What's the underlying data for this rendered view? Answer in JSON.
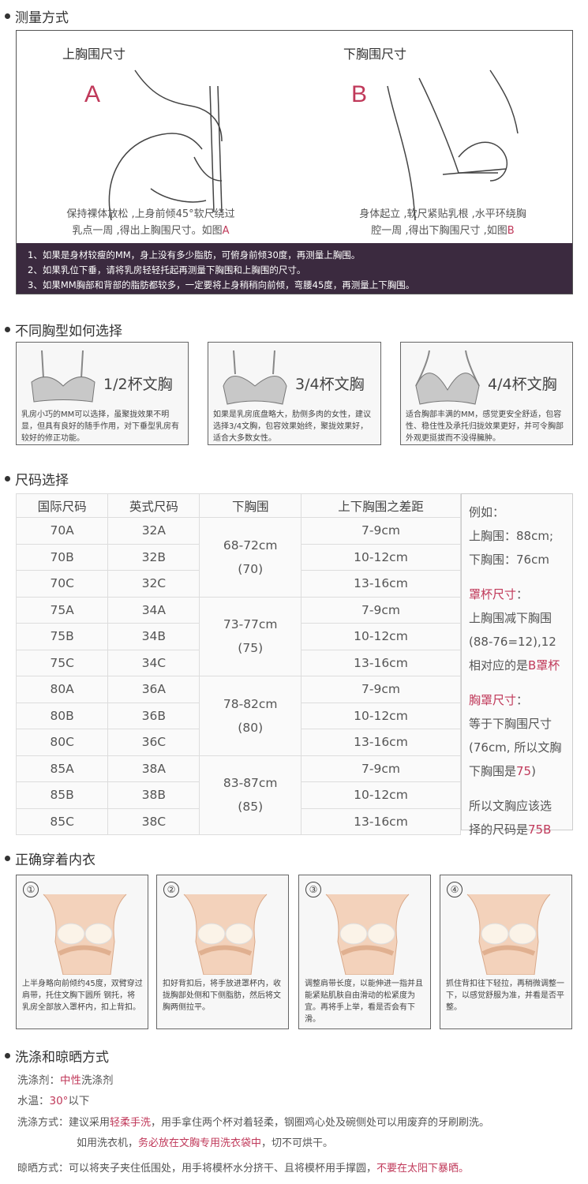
{
  "sections": {
    "measure": "测量方式",
    "cups": "不同胸型如何选择",
    "size": "尺码选择",
    "wear": "正确穿着内衣",
    "wash": "洗涤和晾晒方式"
  },
  "measure": {
    "a": {
      "label": "上胸围尺寸",
      "letter": "A",
      "desc1": "保持裸体放松 ,上身前倾45°软尺绕过",
      "desc2": "乳点一周 ,得出上胸围尺寸。如图",
      "ref": "A"
    },
    "b": {
      "label": "下胸围尺寸",
      "letter": "B",
      "desc1": "身体起立 ,软尺紧贴乳根 ,水平环绕胸",
      "desc2": "腔一周 ,得出下胸围尺寸 ,如图",
      "ref": "B"
    },
    "notes": [
      "1、如果是身材较瘦的MM，身上没有多少脂肪，可俯身前倾30度，再测量上胸围。",
      "2、如果乳位下垂，请将乳房轻轻托起再测量下胸围和上胸围的尺寸。",
      "3、如果MM胸部和背部的脂肪都较多，一定要将上身稍稍向前倾，弯腰45度，再测量上下胸围。"
    ]
  },
  "cups": [
    {
      "title": "1/2杯文胸",
      "desc": "乳房小巧的MM可以选择，虽聚拢效果不明显，但具有良好的随手作用，对下垂型乳房有较好的修正功能。"
    },
    {
      "title": "3/4杯文胸",
      "desc": "如果是乳房底盘略大，肋侧多肉的女性，建议选择3/4文胸，包容效果始终，聚拢效果好，适合大多数女性。"
    },
    {
      "title": "4/4杯文胸",
      "desc": "适合胸部丰满的MM，感觉更安全舒适，包容性、稳住性及承托归拢效果更好，并可令胸部外观更挺拔而不没得臃肿。"
    }
  ],
  "size_table": {
    "headers": [
      "国际尺码",
      "英式尺码",
      "下胸围",
      "上下胸围之差距"
    ],
    "groups": [
      {
        "under": "68-72cm",
        "band": "(70)",
        "rows": [
          [
            "70A",
            "32A",
            "7-9cm"
          ],
          [
            "70B",
            "32B",
            "10-12cm"
          ],
          [
            "70C",
            "32C",
            "13-16cm"
          ]
        ]
      },
      {
        "under": "73-77cm",
        "band": "(75)",
        "rows": [
          [
            "75A",
            "34A",
            "7-9cm"
          ],
          [
            "75B",
            "34B",
            "10-12cm"
          ],
          [
            "75C",
            "34C",
            "13-16cm"
          ]
        ]
      },
      {
        "under": "78-82cm",
        "band": "(80)",
        "rows": [
          [
            "80A",
            "36A",
            "7-9cm"
          ],
          [
            "80B",
            "36B",
            "10-12cm"
          ],
          [
            "80C",
            "36C",
            "13-16cm"
          ]
        ]
      },
      {
        "under": "83-87cm",
        "band": "(85)",
        "rows": [
          [
            "85A",
            "38A",
            "7-9cm"
          ],
          [
            "85B",
            "38B",
            "10-12cm"
          ],
          [
            "85C",
            "38C",
            "13-16cm"
          ]
        ]
      }
    ],
    "example": {
      "l1": "例如：",
      "l2": "上胸围：88cm;",
      "l3": "下胸围：76cm",
      "cup_title": "罩杯尺寸",
      "colon": "：",
      "l4": "上胸围减下胸围",
      "l5": "(88-76=12),12",
      "l6": "相对应的是",
      "l6b": "B罩杯",
      "band_title": "胸罩尺寸",
      "l7": "等于下胸围尺寸",
      "l8": "(76cm, 所以文胸",
      "l9": "下胸围是",
      "l9b": "75",
      "l9c": ")",
      "l10": "所以文胸应该选",
      "l11": "择的尺码是",
      "l11b": "75B"
    }
  },
  "steps": [
    {
      "num": "①",
      "desc": "上半身略向前倾约45度，双臂穿过肩带，托住文胸下圆所 钢托，将乳房全部放入罩杯内，扣上背扣。"
    },
    {
      "num": "②",
      "desc": "扣好背扣后，将手放进罩杯内，收拢胸部处侧和下侧脂肪，然后将文胸两侧拉平。"
    },
    {
      "num": "③",
      "desc": "调整肩带长度，以能伸进一指并且能紧贴肌肤自由滑动的松紧度为宜。再将手上举，看是否会有下滑。"
    },
    {
      "num": "④",
      "desc": "抓住背扣往下轻拉，再稍微调整一下，以感觉舒服为准，并看是否平整。"
    }
  ],
  "wash": {
    "detergent_label": "洗涤剂：",
    "detergent_hl": "中性",
    "detergent_rest": "洗涤剂",
    "temp_label": "水温：",
    "temp_hl": "30°",
    "temp_rest": "以下",
    "method_label": "洗涤方式：",
    "m1a": "建议采用",
    "m1hl": "轻柔手洗",
    "m1b": "，用手拿住两个杯对着轻柔，钢圈鸡心处及碗侧处可以用废弃的牙刷刷洗。",
    "m2a": "如用洗衣机，",
    "m2hl": "务必放在文胸专用洗衣袋中",
    "m2b": "，切不可烘干。",
    "dry_label": "晾晒方式：",
    "d1": "可以将夹子夹住低围处，用手将模杯水分挤干、且将模杯用手撑圆，",
    "d1hl": "不要在太阳下暴晒。"
  },
  "colors": {
    "accent": "#c0395a",
    "band": "#3b2a3f"
  }
}
